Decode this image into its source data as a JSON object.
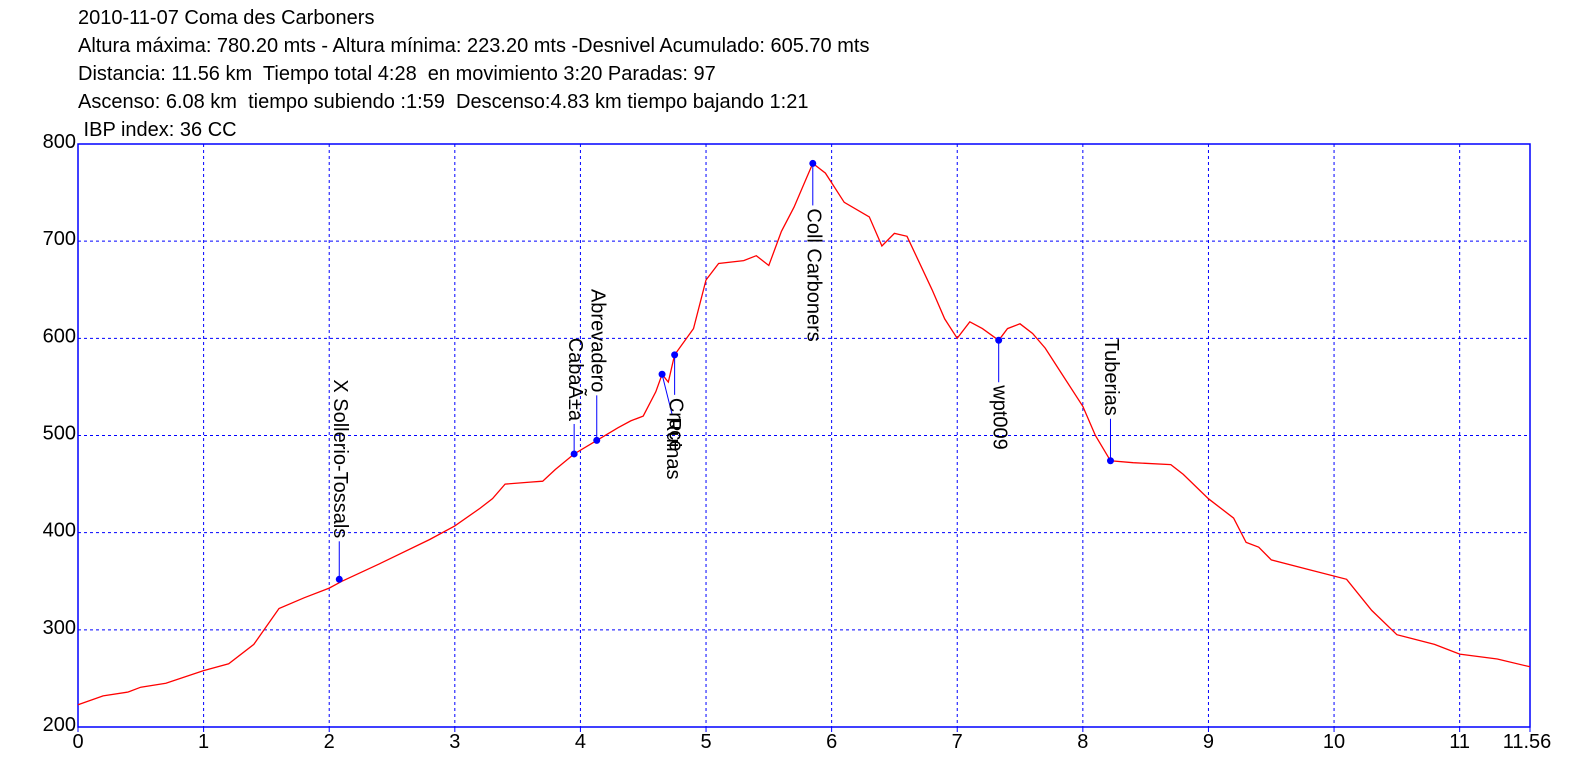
{
  "chart_data": {
    "type": "line",
    "title": "2010-11-07 Coma des Carboners",
    "subtitle": [
      "Altura máxima: 780.20 mts - Altura mínima: 223.20 mts -Desnivel Acumulado: 605.70 mts",
      "Distancia: 11.56 km  Tiempo total 4:28  en movimiento 3:20 Paradas: 97",
      "Ascenso: 6.08 km  tiempo subiendo :1:59  Descenso:4.83 km tiempo bajando 1:21",
      " IBP index: 36 CC"
    ],
    "xlim": [
      0,
      11.56
    ],
    "ylim": [
      200,
      800
    ],
    "xticks": [
      0,
      1,
      2,
      3,
      4,
      5,
      6,
      7,
      8,
      9,
      10,
      11,
      11.56
    ],
    "yticks": [
      200,
      300,
      400,
      500,
      600,
      700,
      800
    ],
    "grid": true,
    "axis_color": "#0000ff",
    "x": [
      0,
      0.2,
      0.4,
      0.5,
      0.7,
      1.0,
      1.2,
      1.4,
      1.6,
      1.8,
      2.0,
      2.1,
      2.4,
      2.8,
      3.0,
      3.2,
      3.3,
      3.4,
      3.6,
      3.7,
      3.8,
      3.95,
      4.13,
      4.3,
      4.4,
      4.5,
      4.6,
      4.65,
      4.7,
      4.75,
      4.9,
      5.0,
      5.1,
      5.3,
      5.4,
      5.5,
      5.6,
      5.7,
      5.8,
      5.85,
      5.95,
      6.1,
      6.3,
      6.4,
      6.5,
      6.6,
      6.8,
      6.9,
      7.0,
      7.1,
      7.2,
      7.33,
      7.4,
      7.5,
      7.6,
      7.7,
      7.8,
      8.0,
      8.1,
      8.22,
      8.4,
      8.7,
      8.8,
      9.0,
      9.2,
      9.3,
      9.4,
      9.5,
      9.8,
      10.1,
      10.3,
      10.5,
      10.8,
      11.0,
      11.3,
      11.56
    ],
    "series": [
      {
        "color": "#ff0000",
        "values": [
          223,
          232,
          236,
          241,
          245,
          258,
          265,
          285,
          322,
          333,
          343,
          350,
          368,
          393,
          407,
          425,
          435,
          450,
          452,
          453,
          465,
          481,
          495,
          508,
          515,
          520,
          545,
          563,
          555,
          583,
          610,
          660,
          677,
          680,
          685,
          675,
          710,
          735,
          765,
          780,
          770,
          740,
          725,
          695,
          708,
          705,
          650,
          620,
          600,
          617,
          610,
          598,
          610,
          615,
          605,
          590,
          570,
          530,
          500,
          474,
          472,
          470,
          460,
          435,
          415,
          390,
          385,
          372,
          362,
          352,
          320,
          295,
          285,
          275,
          270,
          262
        ]
      }
    ],
    "waypoint_color": "#0000ff",
    "waypoints": [
      {
        "name": "X Sollerio-Tossals",
        "x": 2.08,
        "y": 352
      },
      {
        "name": "CabaÃ±a",
        "x": 3.95,
        "y": 481
      },
      {
        "name": "Abrevadero",
        "x": 4.13,
        "y": 495
      },
      {
        "name": "Ruinas",
        "x": 4.65,
        "y": 563
      },
      {
        "name": "Cruce",
        "x": 4.75,
        "y": 583
      },
      {
        "name": "Coll Carboners",
        "x": 5.85,
        "y": 780
      },
      {
        "name": "wpt009",
        "x": 7.33,
        "y": 598
      },
      {
        "name": "Tuberias",
        "x": 8.22,
        "y": 474
      }
    ]
  }
}
